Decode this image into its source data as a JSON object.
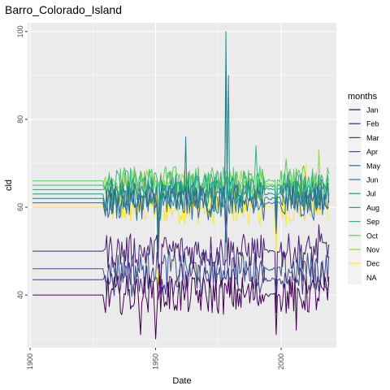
{
  "chart_data": {
    "type": "line",
    "title": "Barro_Colorado_Island",
    "xlabel": "Date",
    "ylabel": "cld",
    "xlim": [
      1899,
      2022
    ],
    "ylim": [
      28,
      102
    ],
    "x_ticks": [
      1900,
      1950,
      2000
    ],
    "x_tick_labels": [
      "1900",
      "1950",
      "2000"
    ],
    "y_ticks": [
      40,
      60,
      80,
      100
    ],
    "y_tick_labels": [
      "40",
      "60",
      "80",
      "100"
    ],
    "grid": true,
    "legend": {
      "title": "months",
      "position": "right"
    },
    "series": [
      {
        "name": "Jan",
        "color": "#440154",
        "base": 40.0,
        "amp": 4.5,
        "spikes": [
          [
            1950,
            30
          ],
          [
            1944,
            31
          ],
          [
            1998,
            31
          ],
          [
            2006,
            32
          ]
        ]
      },
      {
        "name": "Feb",
        "color": "#481F70",
        "base": 50.0,
        "amp": 4.0,
        "spikes": [
          [
            1952,
            41
          ],
          [
            1998,
            36
          ],
          [
            2015,
            56
          ]
        ]
      },
      {
        "name": "Mar",
        "color": "#443A83",
        "base": 43.5,
        "amp": 4.0,
        "spikes": [
          [
            1951,
            39
          ],
          [
            1998,
            38
          ]
        ]
      },
      {
        "name": "Apr",
        "color": "#3B528B",
        "base": 46.0,
        "amp": 4.0,
        "spikes": [
          [
            1978,
            62
          ],
          [
            1998,
            42
          ]
        ]
      },
      {
        "name": "May",
        "color": "#31688E",
        "base": 61.0,
        "amp": 4.0,
        "spikes": [
          [
            1951,
            48
          ],
          [
            1978,
            52
          ],
          [
            1998,
            54
          ]
        ]
      },
      {
        "name": "Jun",
        "color": "#287C8E",
        "base": 62.0,
        "amp": 3.5,
        "spikes": [
          [
            1951,
            52
          ],
          [
            1962,
            76
          ],
          [
            1978,
            91
          ],
          [
            1998,
            57
          ]
        ]
      },
      {
        "name": "Jul",
        "color": "#21918C",
        "base": 63.0,
        "amp": 3.5,
        "spikes": [
          [
            1951,
            53
          ],
          [
            1978,
            100
          ],
          [
            1979,
            90
          ],
          [
            1998,
            58
          ]
        ]
      },
      {
        "name": "Aug",
        "color": "#20A486",
        "base": 64.0,
        "amp": 3.5,
        "spikes": [
          [
            1951,
            56
          ],
          [
            1976,
            68
          ],
          [
            1998,
            59
          ]
        ]
      },
      {
        "name": "Sep",
        "color": "#35B779",
        "base": 65.0,
        "amp": 3.5,
        "spikes": [
          [
            1952,
            58
          ],
          [
            1990,
            74
          ],
          [
            1998,
            60
          ]
        ]
      },
      {
        "name": "Oct",
        "color": "#5EC962",
        "base": 66.0,
        "amp": 3.5,
        "spikes": [
          [
            1952,
            57
          ],
          [
            2002,
            71
          ],
          [
            1998,
            60
          ]
        ]
      },
      {
        "name": "Nov",
        "color": "#90D743",
        "base": 65.0,
        "amp": 3.5,
        "spikes": [
          [
            1951,
            56
          ],
          [
            2015,
            73
          ],
          [
            1998,
            58
          ]
        ]
      },
      {
        "name": "Dec",
        "color": "#FDE725",
        "base": 60.0,
        "amp": 4.0,
        "spikes": [
          [
            1951,
            42
          ],
          [
            1998,
            50
          ],
          [
            2010,
            70
          ]
        ]
      },
      {
        "name": "NA",
        "color": "#ebebeb",
        "base": null,
        "amp": 0,
        "spikes": []
      }
    ]
  }
}
